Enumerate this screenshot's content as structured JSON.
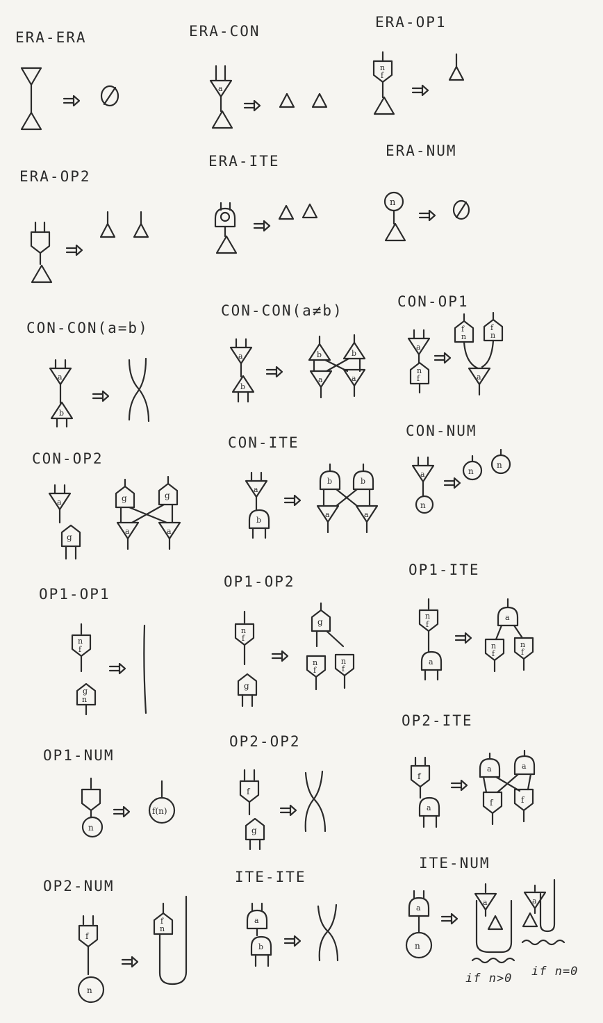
{
  "rules": [
    {
      "id": "era-era",
      "title": "ERA-ERA"
    },
    {
      "id": "era-con",
      "title": "ERA-CON"
    },
    {
      "id": "era-op1",
      "title": "ERA-OP1"
    },
    {
      "id": "era-op2",
      "title": "ERA-OP2"
    },
    {
      "id": "era-ite",
      "title": "ERA-ITE"
    },
    {
      "id": "era-num",
      "title": "ERA-NUM"
    },
    {
      "id": "con-con-eq",
      "title": "CON-CON(a=b)"
    },
    {
      "id": "con-con-neq",
      "title": "CON-CON(a≠b)"
    },
    {
      "id": "con-op1",
      "title": "CON-OP1"
    },
    {
      "id": "con-op2",
      "title": "CON-OP2"
    },
    {
      "id": "con-ite",
      "title": "CON-ITE"
    },
    {
      "id": "con-num",
      "title": "CON-NUM"
    },
    {
      "id": "op1-op1",
      "title": "OP1-OP1"
    },
    {
      "id": "op1-op2",
      "title": "OP1-OP2"
    },
    {
      "id": "op1-ite",
      "title": "OP1-ITE"
    },
    {
      "id": "op1-num",
      "title": "OP1-NUM"
    },
    {
      "id": "op2-op2",
      "title": "OP2-OP2"
    },
    {
      "id": "op2-ite",
      "title": "OP2-ITE"
    },
    {
      "id": "op2-num",
      "title": "OP2-NUM"
    },
    {
      "id": "ite-ite",
      "title": "ITE-ITE"
    },
    {
      "id": "ite-num",
      "title": "ITE-NUM"
    }
  ],
  "ite_num_conditions": [
    "if n>0",
    "if n=0"
  ],
  "node_symbols": {
    "empty": "Ø",
    "var_a": "a",
    "var_b": "b",
    "var_n": "n",
    "fn_f": "f",
    "fn_g": "g",
    "applied": "f(n)"
  },
  "arrow_icon": "rewrite-arrow-icon",
  "ink_color": "#2b2b2b",
  "paper_color": "#f6f5f1"
}
